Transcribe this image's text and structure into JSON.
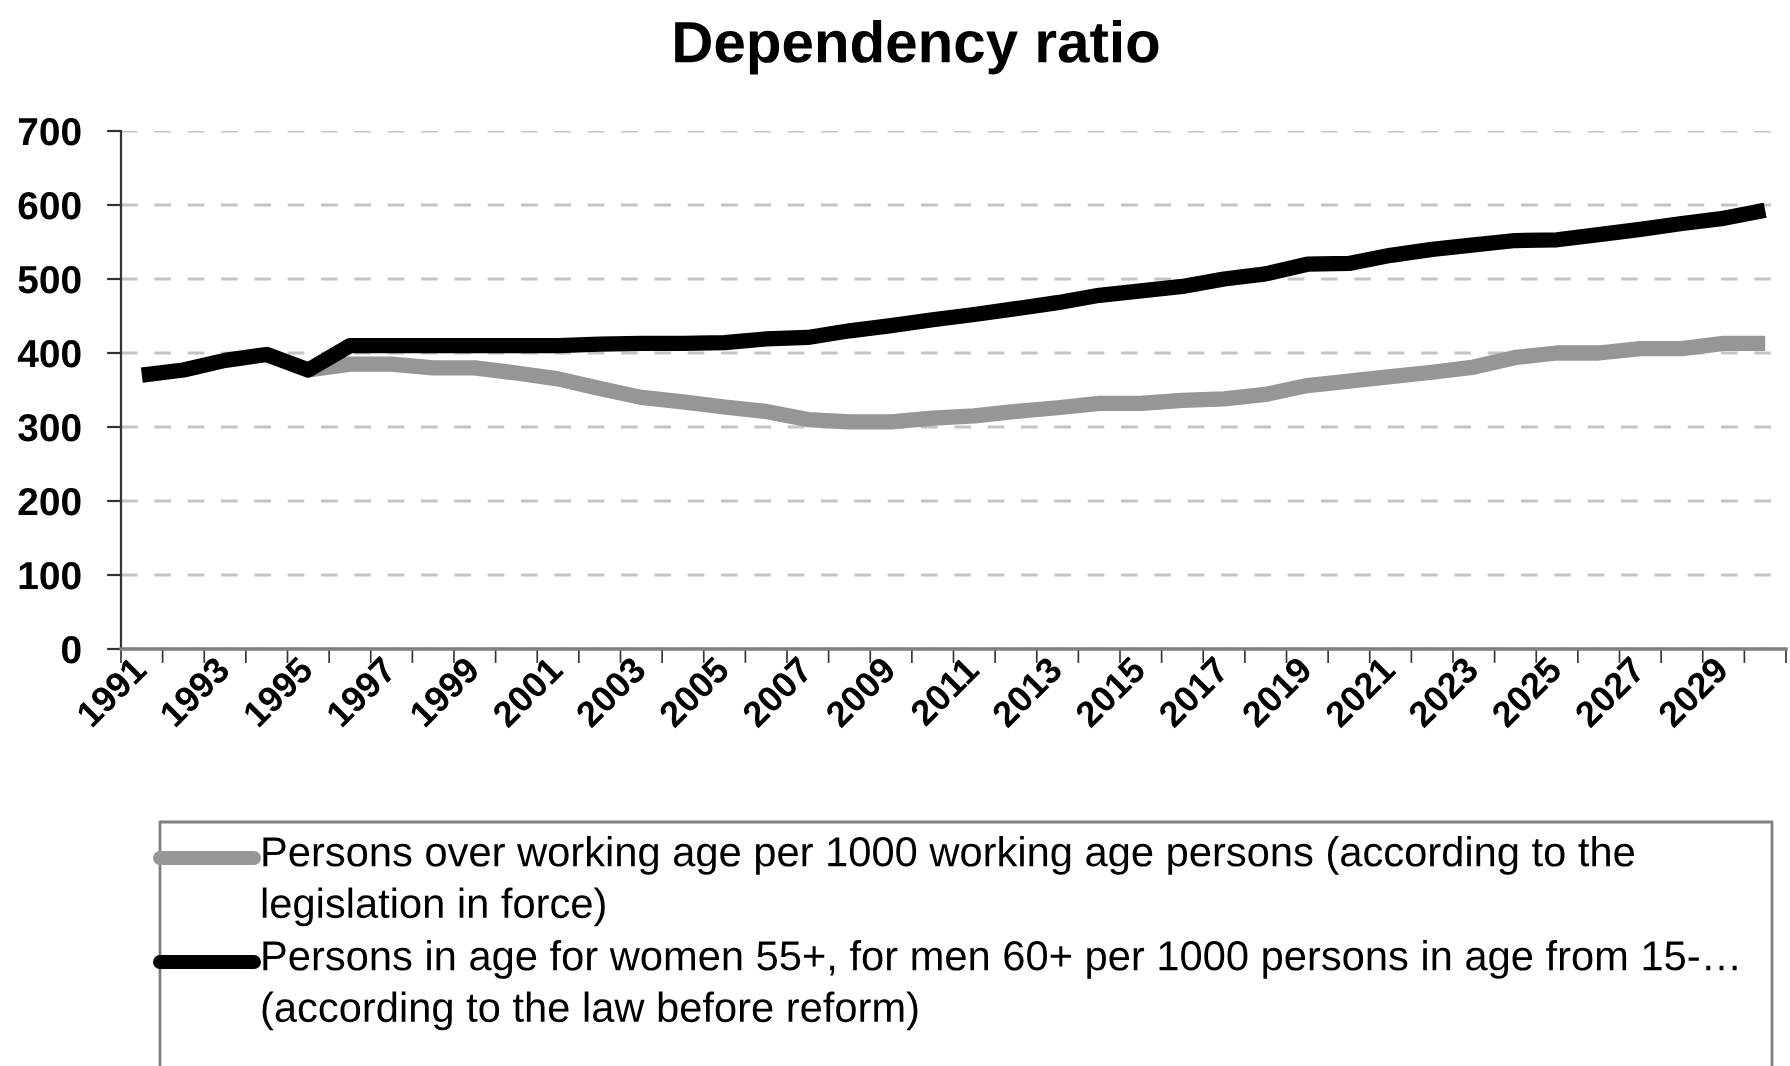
{
  "chart_data": {
    "type": "line",
    "title": "Dependency ratio",
    "categories": [
      "1991",
      null,
      "1993",
      null,
      "1995",
      null,
      "1997",
      null,
      "1999",
      null,
      "2001",
      null,
      "2003",
      null,
      "2005",
      null,
      "2007",
      null,
      "2009",
      null,
      "2011",
      null,
      "2013",
      null,
      "2015",
      null,
      "2017",
      null,
      "2019",
      null,
      "2021",
      null,
      "2023",
      null,
      "2025",
      null,
      "2027",
      null,
      "2029",
      null
    ],
    "series": [
      {
        "name": "Persons over working age per 1000 working age persons (according to the legislation in force)",
        "color": "#969696",
        "values": [
          null,
          null,
          null,
          null,
          377,
          385,
          385,
          380,
          380,
          373,
          365,
          352,
          340,
          334,
          327,
          321,
          310,
          307,
          307,
          312,
          315,
          321,
          326,
          332,
          332,
          336,
          338,
          344,
          356,
          362,
          368,
          374,
          381,
          394,
          400,
          400,
          406,
          406,
          413,
          413
        ]
      },
      {
        "name": "Persons in age for women 55+, for men 60+ per 1000 persons in age from 15-… (according to the law before reform)",
        "color": "#000000",
        "values": [
          370,
          377,
          390,
          398,
          377,
          410,
          410,
          410,
          410,
          410,
          410,
          412,
          413,
          413,
          414,
          419,
          421,
          430,
          437,
          445,
          452,
          460,
          468,
          478,
          484,
          490,
          500,
          507,
          520,
          521,
          532,
          540,
          546,
          552,
          553,
          560,
          567,
          575,
          582,
          593
        ]
      }
    ],
    "ylim": [
      0,
      700
    ],
    "yticks": [
      0,
      100,
      200,
      300,
      400,
      500,
      600,
      700
    ],
    "grid": "y",
    "legend": "bottom",
    "line_style": "solid"
  }
}
